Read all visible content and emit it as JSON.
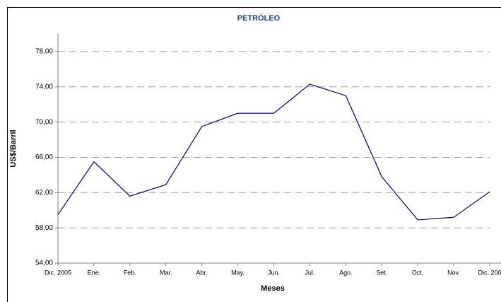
{
  "chart_data": {
    "type": "line",
    "title": "PETRÓLEO",
    "x_label": "Meses",
    "y_label": "US$/Barril",
    "categories": [
      "Dic. 2005",
      "Ene.",
      "Feb.",
      "Mar.",
      "Abr.",
      "May.",
      "Jun.",
      "Jul.",
      "Ago.",
      "Set.",
      "Oct.",
      "Nov.",
      "Dic. 200"
    ],
    "series": [
      {
        "name": "Petróleo",
        "color": "#000080",
        "values": [
          59.5,
          65.5,
          61.6,
          62.9,
          69.5,
          71.0,
          71.0,
          74.3,
          73.0,
          63.8,
          58.9,
          59.2,
          62.1
        ]
      }
    ],
    "ylim": [
      54,
      80
    ],
    "yticks": [
      {
        "value": 54,
        "label": "54,00"
      },
      {
        "value": 58,
        "label": "58,00"
      },
      {
        "value": 62,
        "label": "62,00"
      },
      {
        "value": 66,
        "label": "66,00"
      },
      {
        "value": 70,
        "label": "70,00"
      },
      {
        "value": 74,
        "label": "74,00"
      },
      {
        "value": 78,
        "label": "78,00"
      }
    ],
    "grid": true
  }
}
